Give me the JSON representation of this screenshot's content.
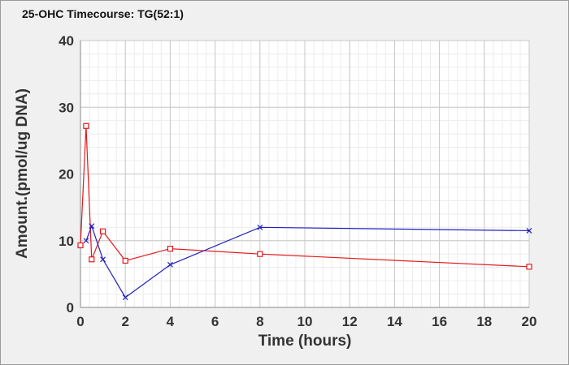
{
  "chart_data": {
    "type": "line",
    "title": "25-OHC Timecourse: TG(52:1)",
    "xlabel": "Time (hours)",
    "ylabel": "Amount.(pmol/ug DNA)",
    "xlim": [
      0,
      20
    ],
    "ylim": [
      0,
      40
    ],
    "xticks": [
      0,
      2,
      4,
      6,
      8,
      10,
      12,
      14,
      16,
      18,
      20
    ],
    "yticks": [
      0,
      10,
      20,
      30,
      40
    ],
    "grid": true,
    "legend": "none",
    "series": [
      {
        "color": "#e31a1c",
        "marker": "square",
        "x": [
          0,
          0.25,
          0.5,
          1,
          2,
          4,
          8,
          20
        ],
        "y": [
          9.3,
          27.2,
          7.2,
          11.4,
          7.0,
          8.8,
          8.0,
          6.1
        ]
      },
      {
        "color": "#1f1fbf",
        "marker": "x",
        "x": [
          0.25,
          0.5,
          1,
          2,
          4,
          8,
          20
        ],
        "y": [
          10.0,
          12.2,
          7.2,
          1.5,
          6.4,
          12.0,
          11.5
        ]
      }
    ]
  }
}
